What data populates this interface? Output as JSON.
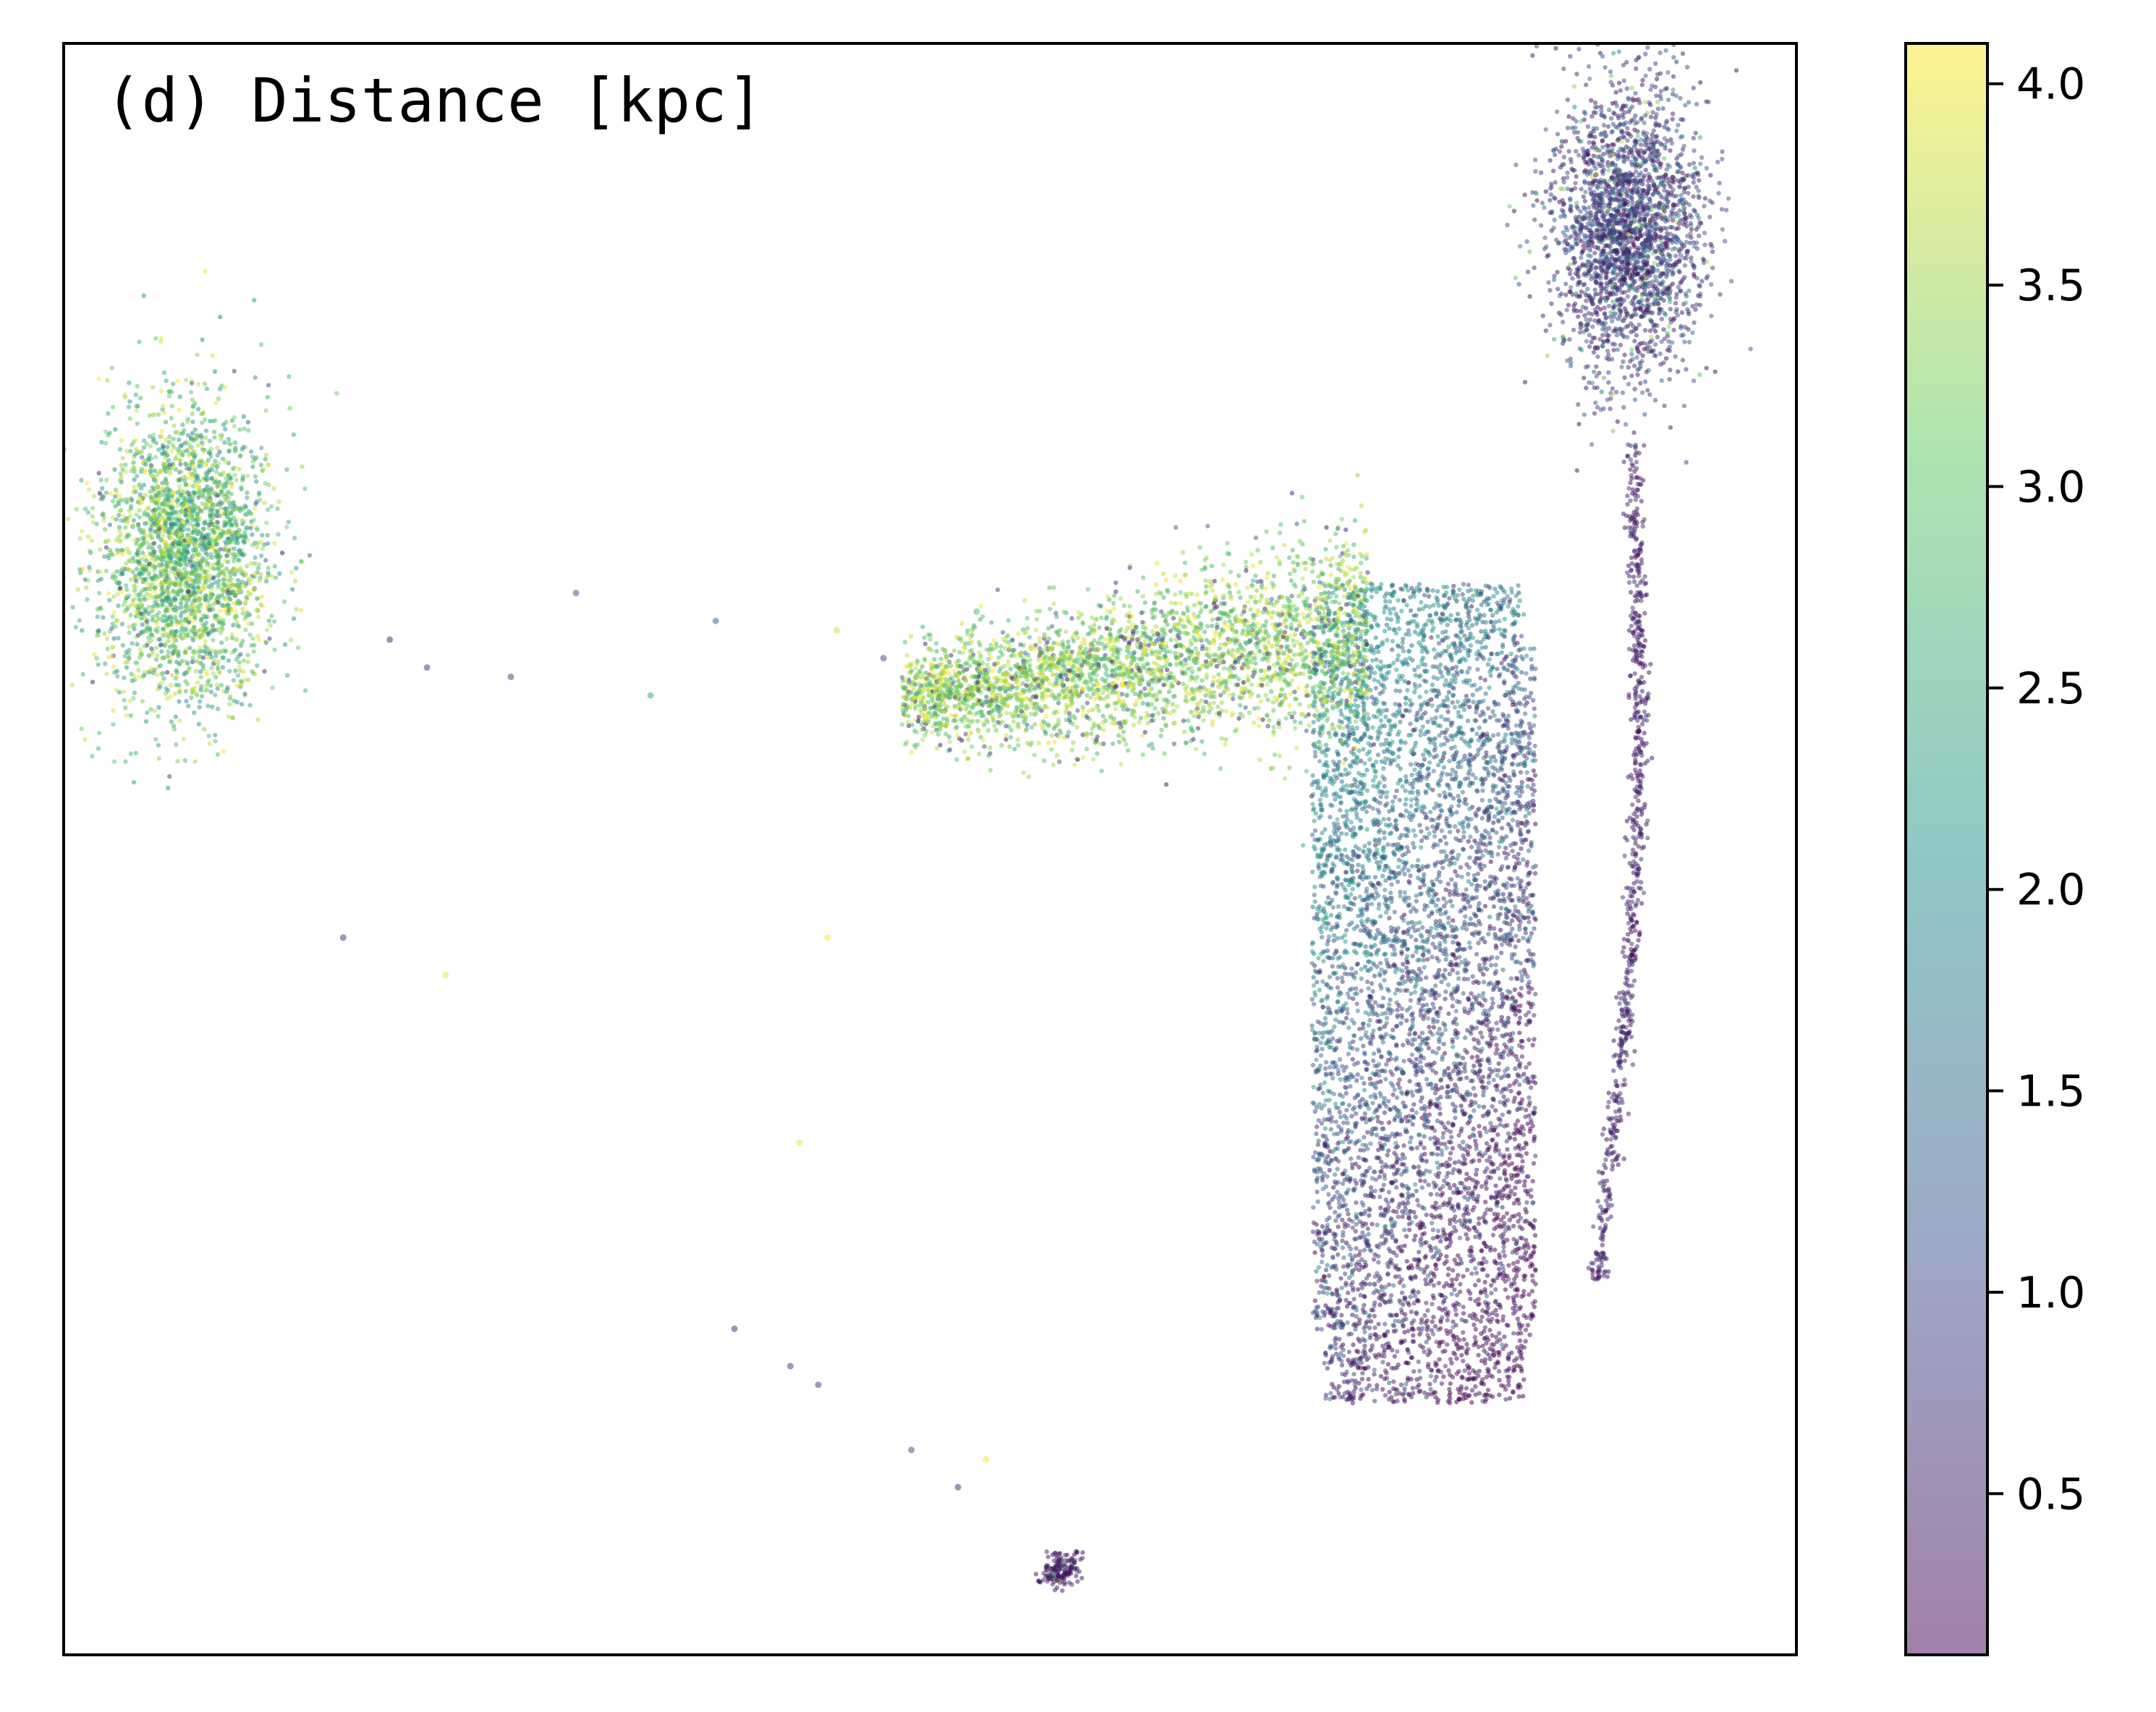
{
  "chart_data": {
    "type": "scatter",
    "title": "(d) Distance [kpc]",
    "xlabel": "",
    "ylabel": "",
    "x_ticks_shown": false,
    "y_ticks_shown": false,
    "grid": false,
    "colormap": "viridis",
    "colormap_stops": [
      "#440154",
      "#3b528b",
      "#21918c",
      "#5ec962",
      "#fde725"
    ],
    "point_alpha": 0.5,
    "colorbar": {
      "label": "",
      "range": [
        0.1,
        4.1
      ],
      "ticks": [
        "0.5",
        "1.0",
        "1.5",
        "2.0",
        "2.5",
        "3.0",
        "3.5",
        "4.0"
      ]
    },
    "clusters": [
      {
        "name": "left-cluster",
        "center": [
          -8.0,
          5.3
        ],
        "extent": [
          0.9,
          1.6
        ],
        "distance_range": [
          2.0,
          4.1
        ]
      },
      {
        "name": "upper-right-clump",
        "center": [
          7.5,
          8.8
        ],
        "extent": [
          0.8,
          1.6
        ],
        "distance_range": [
          0.1,
          1.5
        ]
      },
      {
        "name": "right-filament",
        "center": [
          7.5,
          2.0
        ],
        "extent": [
          0.2,
          4.5
        ],
        "distance_range": [
          0.1,
          0.8
        ]
      },
      {
        "name": "central-bulk",
        "center": [
          5.3,
          0.6
        ],
        "extent": [
          1.2,
          4.4
        ],
        "distance_range": [
          0.1,
          2.2
        ]
      },
      {
        "name": "central-wing",
        "center": [
          2.2,
          4.5
        ],
        "extent": [
          2.5,
          1.3
        ],
        "distance_range": [
          2.5,
          4.1
        ]
      },
      {
        "name": "bottom-knot",
        "center": [
          1.4,
          -5.6
        ],
        "extent": [
          0.2,
          0.2
        ],
        "distance_range": [
          0.1,
          0.6
        ]
      }
    ],
    "outliers": [
      {
        "x": -5.8,
        "y": 4.4,
        "d": 0.5
      },
      {
        "x": -5.4,
        "y": 4.1,
        "d": 0.7
      },
      {
        "x": -4.5,
        "y": 4.0,
        "d": 0.8
      },
      {
        "x": -3.8,
        "y": 4.9,
        "d": 1.0
      },
      {
        "x": -3.0,
        "y": 3.8,
        "d": 2.5
      },
      {
        "x": -2.3,
        "y": 4.6,
        "d": 1.2
      },
      {
        "x": -1.0,
        "y": 4.5,
        "d": 3.8
      },
      {
        "x": -0.5,
        "y": 4.2,
        "d": 0.9
      },
      {
        "x": -6.3,
        "y": 1.2,
        "d": 0.6
      },
      {
        "x": -5.2,
        "y": 0.8,
        "d": 4.0
      },
      {
        "x": -1.1,
        "y": 1.2,
        "d": 4.0
      },
      {
        "x": -1.4,
        "y": -1.0,
        "d": 4.0
      },
      {
        "x": -2.1,
        "y": -3.0,
        "d": 0.6
      },
      {
        "x": -1.5,
        "y": -3.4,
        "d": 0.7
      },
      {
        "x": -1.2,
        "y": -3.6,
        "d": 0.8
      },
      {
        "x": -0.2,
        "y": -4.3,
        "d": 0.9
      },
      {
        "x": 0.3,
        "y": -4.7,
        "d": 0.5
      },
      {
        "x": 0.6,
        "y": -4.4,
        "d": 4.0
      },
      {
        "x": 1.3,
        "y": 4.3,
        "d": 3.9
      },
      {
        "x": 0.5,
        "y": 4.7,
        "d": 2.8
      }
    ]
  }
}
